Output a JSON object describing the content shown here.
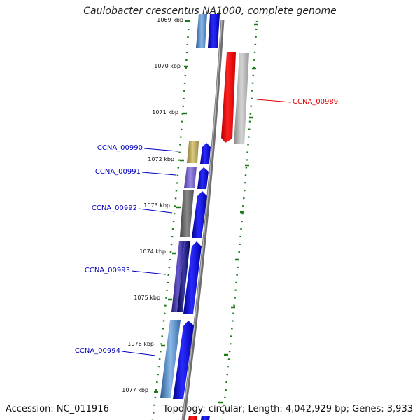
{
  "title": "Caulobacter crescentus NA1000, complete genome",
  "footer": {
    "accession": "Accession: NC_011916",
    "topology": "Topology: circular; Length: 4,042,929 bp; Genes: 3,933"
  },
  "ticks": [
    "1069 kbp",
    "1070 kbp",
    "1071 kbp",
    "1072 kbp",
    "1073 kbp",
    "1074 kbp",
    "1075 kbp",
    "1076 kbp",
    "1077 kbp"
  ],
  "gene_labels": [
    "CCNA_00989",
    "CCNA_00990",
    "CCNA_00991",
    "CCNA_00992",
    "CCNA_00993",
    "CCNA_00994"
  ],
  "colors": {
    "forward": "#0000ee",
    "reverse": "#ff0000",
    "label_forward": "#0000bb",
    "label_reverse": "#dd0000",
    "dots": "#1a7a1a",
    "backbone": "#777777"
  }
}
